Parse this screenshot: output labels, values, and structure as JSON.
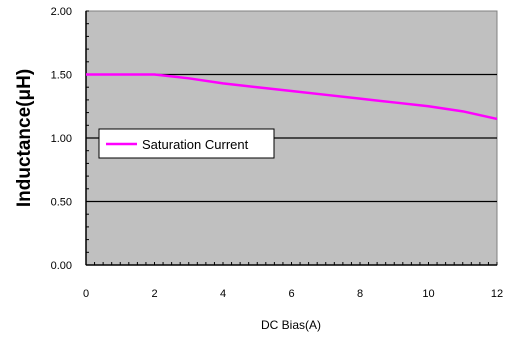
{
  "chart_data": {
    "type": "line",
    "xlabel": "DC Bias(A)",
    "ylabel": "Inductance(μH)",
    "xlim": [
      0,
      12
    ],
    "ylim": [
      0.0,
      2.0
    ],
    "x_ticks": [
      "0",
      "2",
      "4",
      "6",
      "8",
      "10",
      "12"
    ],
    "y_ticks": [
      "0.00",
      "0.50",
      "1.00",
      "1.50",
      "2.00"
    ],
    "grid": "horizontal",
    "legend_position": "middle-left",
    "plot_background": "#c0c0c0",
    "series": [
      {
        "name": "Saturation Current",
        "color": "#ff00ff",
        "x": [
          0,
          1,
          2,
          3,
          4,
          5,
          6,
          7,
          8,
          9,
          10,
          11,
          12
        ],
        "y": [
          1.5,
          1.5,
          1.5,
          1.47,
          1.43,
          1.4,
          1.37,
          1.34,
          1.31,
          1.28,
          1.25,
          1.21,
          1.15
        ]
      }
    ]
  }
}
